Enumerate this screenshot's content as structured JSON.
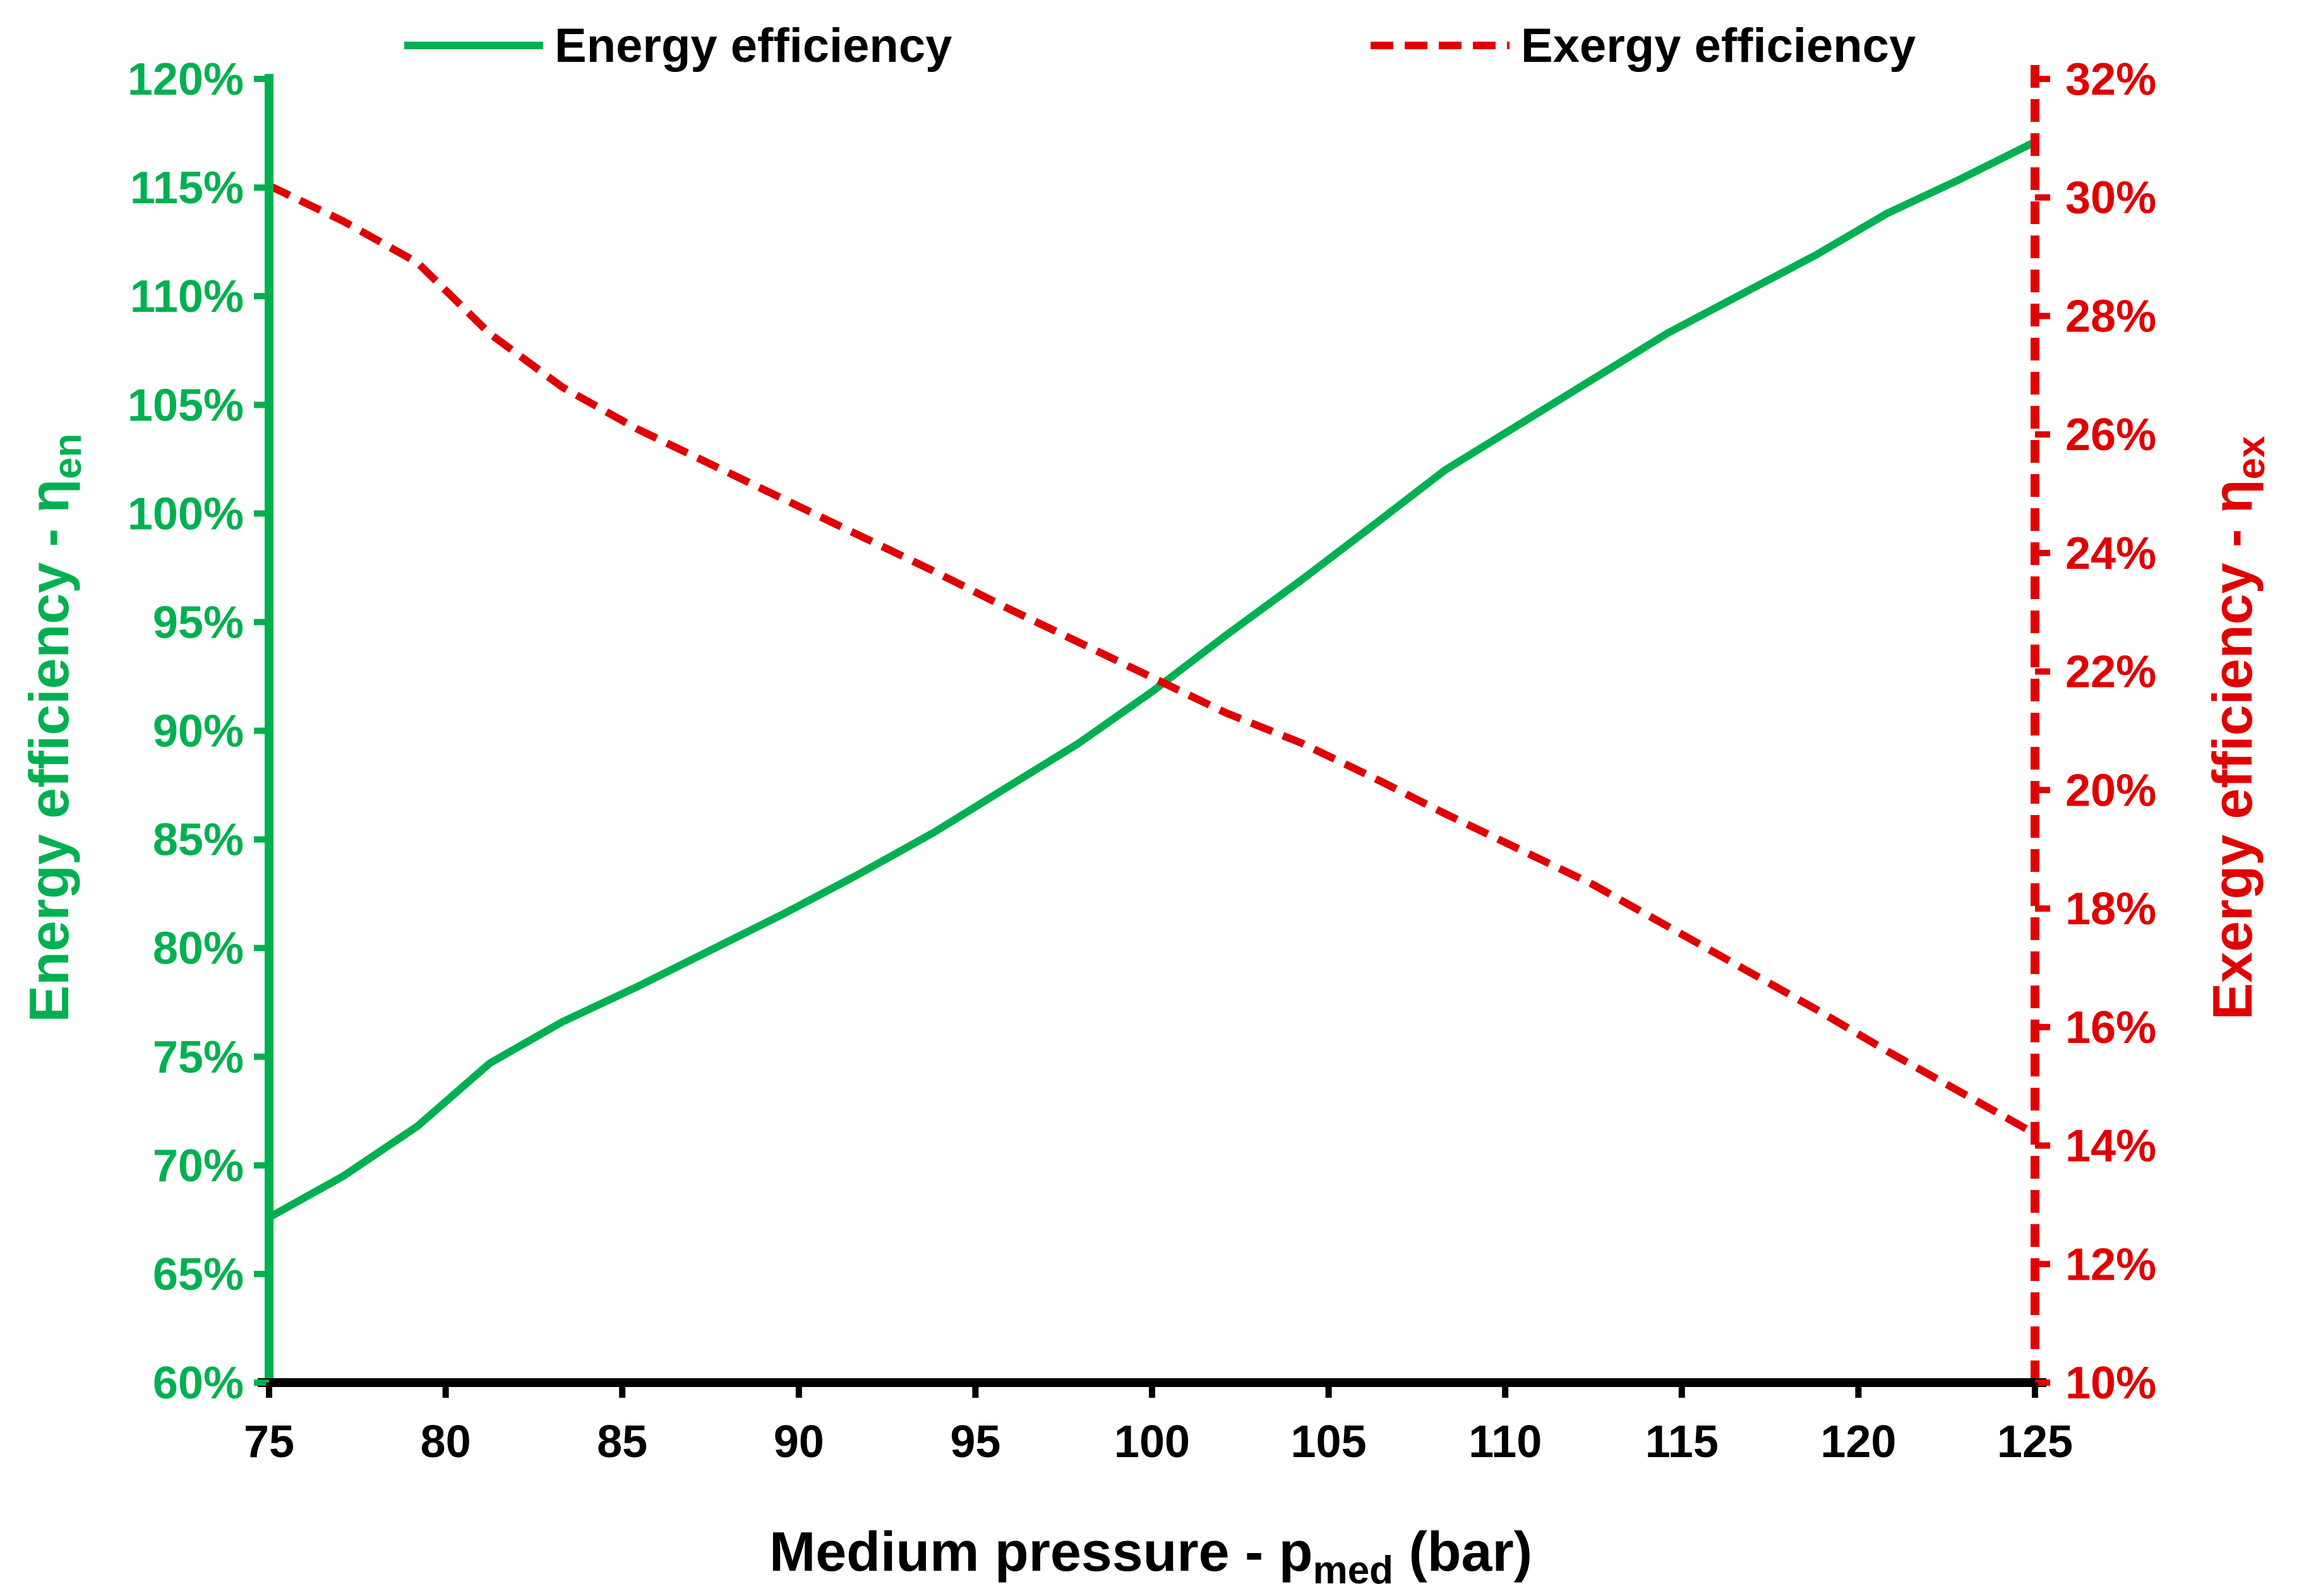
{
  "colors": {
    "energy": "#00b050",
    "exergy": "#e00000",
    "axis": "#000000",
    "background": "#ffffff"
  },
  "chart_data": {
    "type": "line",
    "title": "",
    "xlabel": {
      "main": "Medium pressure - p",
      "sub": "med",
      "tail": " (bar)"
    },
    "ylabel_left": {
      "main": "Energy efficiency - η",
      "sub": "en"
    },
    "ylabel_right": {
      "main": "Exergy efficiency - η",
      "sub": "ex"
    },
    "xlim": [
      75,
      125
    ],
    "ylim_left": [
      60,
      120
    ],
    "ylim_right": [
      10,
      32
    ],
    "x_ticks": [
      "75",
      "80",
      "85",
      "90",
      "95",
      "100",
      "105",
      "110",
      "115",
      "120",
      "125"
    ],
    "left_ticks": [
      "60%",
      "65%",
      "70%",
      "75%",
      "80%",
      "85%",
      "90%",
      "95%",
      "100%",
      "105%",
      "110%",
      "115%",
      "120%"
    ],
    "right_ticks": [
      "10%",
      "12%",
      "14%",
      "16%",
      "18%",
      "20%",
      "22%",
      "24%",
      "26%",
      "28%",
      "30%",
      "32%"
    ],
    "legend_position": "top",
    "series": [
      {
        "name": "Energy efficiency",
        "axis": "left",
        "style": "solid",
        "x": [
          75,
          77.1,
          79.2,
          81.25,
          83.3,
          85.4,
          87.5,
          89.6,
          91.7,
          93.8,
          95.8,
          97.9,
          100,
          102.1,
          104.2,
          106.3,
          108.3,
          110.4,
          112.5,
          114.6,
          116.7,
          118.8,
          120.8,
          122.9,
          125
        ],
        "values": [
          67.6,
          69.5,
          71.8,
          74.7,
          76.6,
          78.2,
          79.9,
          81.6,
          83.4,
          85.3,
          87.3,
          89.4,
          91.8,
          94.4,
          96.9,
          99.5,
          102.0,
          104.1,
          106.2,
          108.3,
          110.1,
          111.9,
          113.8,
          115.4,
          117.1
        ]
      },
      {
        "name": "Exergy efficiency",
        "axis": "right",
        "style": "dashed",
        "x": [
          75,
          77.1,
          79.2,
          81.25,
          83.3,
          85.4,
          87.5,
          89.6,
          91.7,
          93.8,
          95.8,
          97.9,
          100,
          102.1,
          104.2,
          106.3,
          108.3,
          110.4,
          112.5,
          114.6,
          116.7,
          118.8,
          120.8,
          122.9,
          125
        ],
        "values": [
          30.2,
          29.6,
          28.9,
          27.7,
          26.8,
          26.1,
          25.5,
          24.9,
          24.3,
          23.7,
          23.1,
          22.5,
          21.9,
          21.3,
          20.8,
          20.2,
          19.6,
          19.0,
          18.4,
          17.7,
          17.0,
          16.3,
          15.6,
          14.9,
          14.2
        ]
      }
    ]
  }
}
